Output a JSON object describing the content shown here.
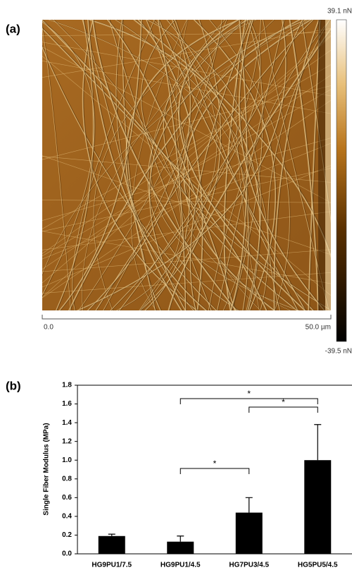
{
  "panel_a": {
    "label": "(a)",
    "colorbar_max": "39.1 nN",
    "colorbar_min": "-39.5 nN",
    "scale_start": "0.0",
    "scale_end": "50.0 µm"
  },
  "chart_data": {
    "type": "bar",
    "panel_label": "(b)",
    "y_label": "Single Fiber Modulus (MPa)",
    "categories": [
      "HG9PU1/7.5",
      "HG9PU1/4.5",
      "HG7PU3/4.5",
      "HG5PU5/4.5"
    ],
    "values": [
      0.19,
      0.13,
      0.44,
      1.0
    ],
    "errors": [
      0.02,
      0.06,
      0.16,
      0.38
    ],
    "color": "#000000",
    "ylim": [
      0,
      1.8
    ],
    "yticks": [
      {
        "value": 0,
        "label": "0.0"
      },
      0.2,
      0.4,
      0.6,
      0.8,
      {
        "value": 1,
        "label": "1.0"
      },
      1.2,
      1.4,
      1.6,
      1.8
    ],
    "annotations": [
      {
        "from": 1,
        "to": 2,
        "label": "*"
      },
      {
        "from": 2,
        "to": 3,
        "label": "*"
      },
      {
        "from": 1,
        "to": 3,
        "label": "*"
      }
    ]
  }
}
